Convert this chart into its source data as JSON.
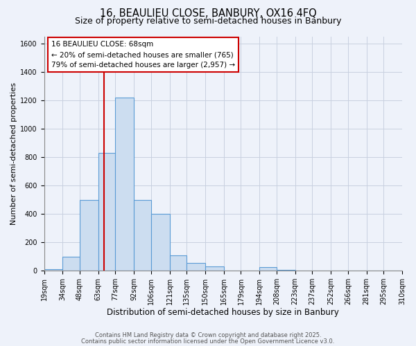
{
  "title1": "16, BEAULIEU CLOSE, BANBURY, OX16 4FQ",
  "title2": "Size of property relative to semi-detached houses in Banbury",
  "xlabel": "Distribution of semi-detached houses by size in Banbury",
  "ylabel": "Number of semi-detached properties",
  "bin_edges": [
    19,
    34,
    48,
    63,
    77,
    92,
    106,
    121,
    135,
    150,
    165,
    179,
    194,
    208,
    223,
    237,
    252,
    266,
    281,
    295,
    310
  ],
  "bar_heights": [
    10,
    100,
    500,
    830,
    1220,
    500,
    400,
    110,
    55,
    30,
    2,
    2,
    25,
    5,
    2,
    2,
    2,
    2,
    2,
    2
  ],
  "bar_facecolor": "#ccddf0",
  "bar_edgecolor": "#5b9bd5",
  "grid_color": "#c8d0e0",
  "background_color": "#eef2fa",
  "vline_x": 68,
  "vline_color": "#cc0000",
  "annotation_title": "16 BEAULIEU CLOSE: 68sqm",
  "annotation_line1": "← 20% of semi-detached houses are smaller (765)",
  "annotation_line2": "79% of semi-detached houses are larger (2,957) →",
  "ylim": [
    0,
    1650
  ],
  "yticks": [
    0,
    200,
    400,
    600,
    800,
    1000,
    1200,
    1400,
    1600
  ],
  "footnote1": "Contains HM Land Registry data © Crown copyright and database right 2025.",
  "footnote2": "Contains public sector information licensed under the Open Government Licence v3.0.",
  "title1_fontsize": 10.5,
  "title2_fontsize": 9,
  "xlabel_fontsize": 8.5,
  "ylabel_fontsize": 8,
  "tick_fontsize": 7,
  "footnote_fontsize": 6,
  "annot_fontsize": 7.5
}
